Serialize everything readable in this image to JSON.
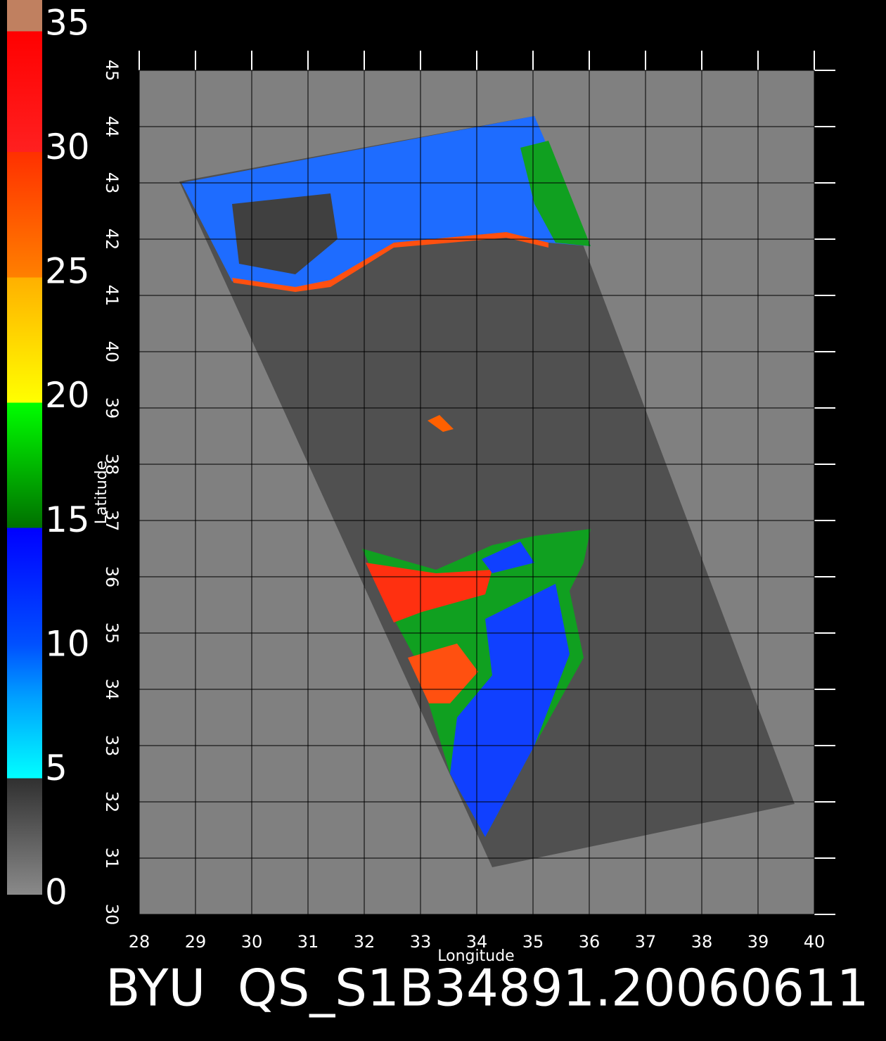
{
  "chart_data": {
    "type": "map",
    "title": "BYU  QS_S1B34891.20060611",
    "xlabel": "Longitude",
    "ylabel": "Latitude",
    "xlim": [
      28,
      40
    ],
    "ylim": [
      30,
      45
    ],
    "xticks": [
      28,
      29,
      30,
      31,
      32,
      33,
      34,
      35,
      36,
      37,
      38,
      39,
      40
    ],
    "yticks": [
      30,
      31,
      32,
      33,
      34,
      35,
      36,
      37,
      38,
      39,
      40,
      41,
      42,
      43,
      44,
      45
    ],
    "grid": true,
    "colorbar": {
      "lim": [
        0,
        35
      ],
      "ticks": [
        0,
        5,
        10,
        15,
        20,
        25,
        30,
        35
      ]
    }
  }
}
